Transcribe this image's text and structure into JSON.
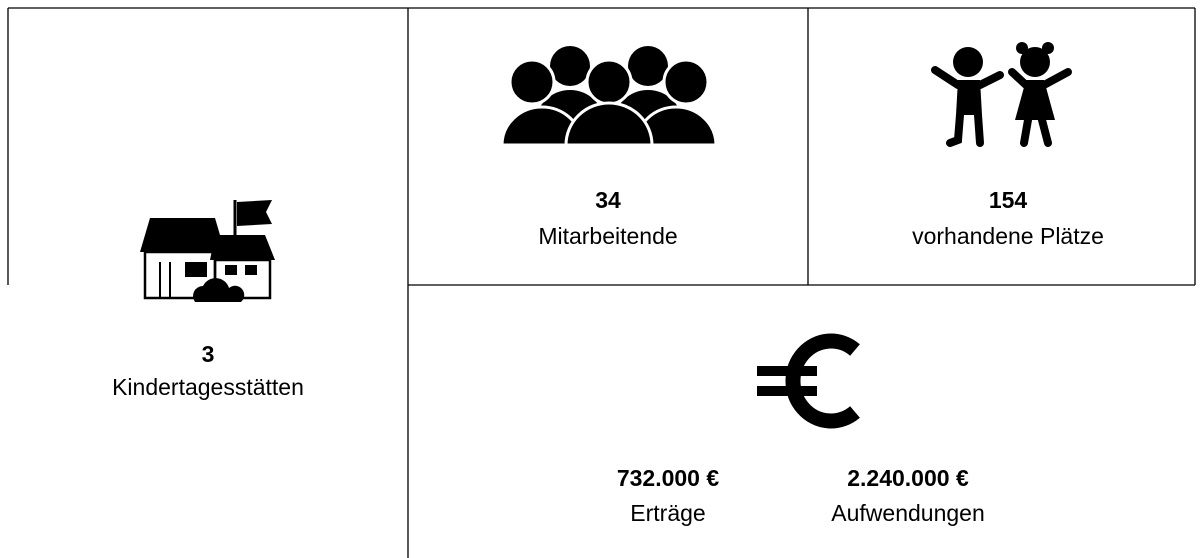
{
  "cells": [
    {
      "number": "3",
      "label": "Kindertagesstätten"
    },
    {
      "number": "34",
      "label": "Mitarbeitende"
    },
    {
      "number": "154",
      "label": "vorhandene Plätze"
    },
    {
      "number": "732.000 €",
      "label": "Erträge"
    },
    {
      "number": "2.240.000 €",
      "label": "Aufwendungen"
    }
  ]
}
